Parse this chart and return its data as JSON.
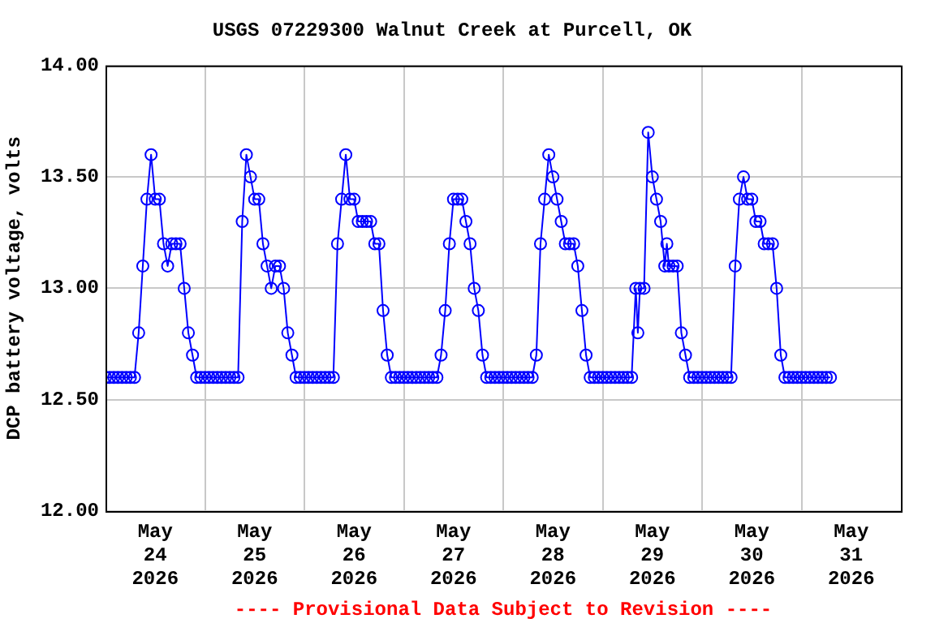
{
  "chart_data": {
    "type": "line",
    "title": "USGS 07229300 Walnut Creek at Purcell, OK",
    "ylabel": "DCP battery voltage, volts",
    "annotations": [
      "---- Provisional Data Subject to Revision ----"
    ],
    "x": [
      "2026-05-24T00:00",
      "2026-05-24T01:00",
      "2026-05-24T02:00",
      "2026-05-24T03:00",
      "2026-05-24T04:00",
      "2026-05-24T05:00",
      "2026-05-24T06:00",
      "2026-05-24T07:00",
      "2026-05-24T08:00",
      "2026-05-24T09:00",
      "2026-05-24T10:00",
      "2026-05-24T11:00",
      "2026-05-24T12:00",
      "2026-05-24T13:00",
      "2026-05-24T14:00",
      "2026-05-24T15:00",
      "2026-05-24T16:00",
      "2026-05-24T17:00",
      "2026-05-24T18:00",
      "2026-05-24T19:00",
      "2026-05-24T20:00",
      "2026-05-24T21:00",
      "2026-05-24T22:00",
      "2026-05-24T23:00",
      "2026-05-25T00:00",
      "2026-05-25T01:00",
      "2026-05-25T02:00",
      "2026-05-25T03:00",
      "2026-05-25T04:00",
      "2026-05-25T05:00",
      "2026-05-25T06:00",
      "2026-05-25T07:00",
      "2026-05-25T08:00",
      "2026-05-25T09:00",
      "2026-05-25T10:00",
      "2026-05-25T11:00",
      "2026-05-25T12:00",
      "2026-05-25T13:00",
      "2026-05-25T14:00",
      "2026-05-25T15:00",
      "2026-05-25T16:00",
      "2026-05-25T17:00",
      "2026-05-25T18:00",
      "2026-05-25T19:00",
      "2026-05-25T20:00",
      "2026-05-25T21:00",
      "2026-05-25T22:00",
      "2026-05-25T23:00",
      "2026-05-26T00:00",
      "2026-05-26T01:00",
      "2026-05-26T02:00",
      "2026-05-26T03:00",
      "2026-05-26T04:00",
      "2026-05-26T05:00",
      "2026-05-26T06:00",
      "2026-05-26T07:00",
      "2026-05-26T08:00",
      "2026-05-26T09:00",
      "2026-05-26T10:00",
      "2026-05-26T11:00",
      "2026-05-26T12:00",
      "2026-05-26T13:00",
      "2026-05-26T14:00",
      "2026-05-26T15:00",
      "2026-05-26T16:00",
      "2026-05-26T17:00",
      "2026-05-26T18:00",
      "2026-05-26T19:00",
      "2026-05-26T20:00",
      "2026-05-26T21:00",
      "2026-05-26T22:00",
      "2026-05-26T23:00",
      "2026-05-27T00:00",
      "2026-05-27T01:00",
      "2026-05-27T02:00",
      "2026-05-27T03:00",
      "2026-05-27T04:00",
      "2026-05-27T05:00",
      "2026-05-27T06:00",
      "2026-05-27T07:00",
      "2026-05-27T08:00",
      "2026-05-27T09:00",
      "2026-05-27T10:00",
      "2026-05-27T11:00",
      "2026-05-27T12:00",
      "2026-05-27T13:00",
      "2026-05-27T14:00",
      "2026-05-27T15:00",
      "2026-05-27T16:00",
      "2026-05-27T17:00",
      "2026-05-27T18:00",
      "2026-05-27T19:00",
      "2026-05-27T20:00",
      "2026-05-27T21:00",
      "2026-05-27T22:00",
      "2026-05-27T23:00",
      "2026-05-28T00:00",
      "2026-05-28T01:00",
      "2026-05-28T02:00",
      "2026-05-28T03:00",
      "2026-05-28T04:00",
      "2026-05-28T05:00",
      "2026-05-28T06:00",
      "2026-05-28T07:00",
      "2026-05-28T08:00",
      "2026-05-28T09:00",
      "2026-05-28T10:00",
      "2026-05-28T11:00",
      "2026-05-28T12:00",
      "2026-05-28T13:00",
      "2026-05-28T14:00",
      "2026-05-28T15:00",
      "2026-05-28T16:00",
      "2026-05-28T17:00",
      "2026-05-28T18:00",
      "2026-05-28T19:00",
      "2026-05-28T20:00",
      "2026-05-28T21:00",
      "2026-05-28T22:00",
      "2026-05-28T23:00",
      "2026-05-29T00:00",
      "2026-05-29T01:00",
      "2026-05-29T02:00",
      "2026-05-29T03:00",
      "2026-05-29T04:00",
      "2026-05-29T05:00",
      "2026-05-29T06:00",
      "2026-05-29T07:00",
      "2026-05-29T08:00",
      "2026-05-29T08:30",
      "2026-05-29T09:00",
      "2026-05-29T10:00",
      "2026-05-29T11:00",
      "2026-05-29T12:00",
      "2026-05-29T13:00",
      "2026-05-29T14:00",
      "2026-05-29T15:00",
      "2026-05-29T15:30",
      "2026-05-29T16:00",
      "2026-05-29T17:00",
      "2026-05-29T18:00",
      "2026-05-29T19:00",
      "2026-05-29T20:00",
      "2026-05-29T21:00",
      "2026-05-29T22:00",
      "2026-05-29T23:00",
      "2026-05-30T00:00",
      "2026-05-30T01:00",
      "2026-05-30T02:00",
      "2026-05-30T03:00",
      "2026-05-30T04:00",
      "2026-05-30T05:00",
      "2026-05-30T06:00",
      "2026-05-30T07:00",
      "2026-05-30T08:00",
      "2026-05-30T09:00",
      "2026-05-30T10:00",
      "2026-05-30T11:00",
      "2026-05-30T12:00",
      "2026-05-30T13:00",
      "2026-05-30T14:00",
      "2026-05-30T15:00",
      "2026-05-30T16:00",
      "2026-05-30T17:00",
      "2026-05-30T18:00",
      "2026-05-30T19:00",
      "2026-05-30T20:00",
      "2026-05-30T21:00",
      "2026-05-30T22:00",
      "2026-05-30T23:00",
      "2026-05-31T00:00",
      "2026-05-31T01:00",
      "2026-05-31T02:00",
      "2026-05-31T03:00",
      "2026-05-31T04:00",
      "2026-05-31T05:00",
      "2026-05-31T06:00",
      "2026-05-31T07:00"
    ],
    "series": [
      {
        "color": "#0000ff",
        "values": [
          12.6,
          12.6,
          12.6,
          12.6,
          12.6,
          12.6,
          12.6,
          12.6,
          12.8,
          13.1,
          13.4,
          13.6,
          13.4,
          13.4,
          13.2,
          13.1,
          13.2,
          13.2,
          13.2,
          13.0,
          12.8,
          12.7,
          12.6,
          12.6,
          12.6,
          12.6,
          12.6,
          12.6,
          12.6,
          12.6,
          12.6,
          12.6,
          12.6,
          13.3,
          13.6,
          13.5,
          13.4,
          13.4,
          13.2,
          13.1,
          13.0,
          13.1,
          13.1,
          13.0,
          12.8,
          12.7,
          12.6,
          12.6,
          12.6,
          12.6,
          12.6,
          12.6,
          12.6,
          12.6,
          12.6,
          12.6,
          13.2,
          13.4,
          13.6,
          13.4,
          13.4,
          13.3,
          13.3,
          13.3,
          13.3,
          13.2,
          13.2,
          12.9,
          12.7,
          12.6,
          12.6,
          12.6,
          12.6,
          12.6,
          12.6,
          12.6,
          12.6,
          12.6,
          12.6,
          12.6,
          12.6,
          12.7,
          12.9,
          13.2,
          13.4,
          13.4,
          13.4,
          13.3,
          13.2,
          13.0,
          12.9,
          12.7,
          12.6,
          12.6,
          12.6,
          12.6,
          12.6,
          12.6,
          12.6,
          12.6,
          12.6,
          12.6,
          12.6,
          12.6,
          12.7,
          13.2,
          13.4,
          13.6,
          13.5,
          13.4,
          13.3,
          13.2,
          13.2,
          13.2,
          13.1,
          12.9,
          12.7,
          12.6,
          12.6,
          12.6,
          12.6,
          12.6,
          12.6,
          12.6,
          12.6,
          12.6,
          12.6,
          12.6,
          13.0,
          12.8,
          13.0,
          13.0,
          13.7,
          13.5,
          13.4,
          13.3,
          13.1,
          13.2,
          13.1,
          13.1,
          13.1,
          12.8,
          12.7,
          12.6,
          12.6,
          12.6,
          12.6,
          12.6,
          12.6,
          12.6,
          12.6,
          12.6,
          12.6,
          12.6,
          13.1,
          13.4,
          13.5,
          13.4,
          13.4,
          13.3,
          13.3,
          13.2,
          13.2,
          13.2,
          13.0,
          12.7,
          12.6,
          12.6,
          12.6,
          12.6,
          12.6,
          12.6,
          12.6,
          12.6,
          12.6,
          12.6,
          12.6,
          12.6
        ]
      }
    ],
    "xlim": [
      "2026-05-24T00:00",
      "2026-06-01T00:00"
    ],
    "xticks": [
      {
        "value": "2026-05-24T12:00",
        "label": "May 24 2026"
      },
      {
        "value": "2026-05-25T00:00",
        "label": null
      },
      {
        "value": "2026-05-25T12:00",
        "label": "May 25 2026"
      },
      {
        "value": "2026-05-26T00:00",
        "label": null
      },
      {
        "value": "2026-05-26T12:00",
        "label": "May 26 2026"
      },
      {
        "value": "2026-05-27T00:00",
        "label": null
      },
      {
        "value": "2026-05-27T12:00",
        "label": "May 27 2026"
      },
      {
        "value": "2026-05-28T00:00",
        "label": null
      },
      {
        "value": "2026-05-28T12:00",
        "label": "May 28 2026"
      },
      {
        "value": "2026-05-29T00:00",
        "label": null
      },
      {
        "value": "2026-05-29T12:00",
        "label": "May 29 2026"
      },
      {
        "value": "2026-05-30T00:00",
        "label": null
      },
      {
        "value": "2026-05-30T12:00",
        "label": "May 30 2026"
      },
      {
        "value": "2026-05-31T00:00",
        "label": null
      },
      {
        "value": "2026-05-31T12:00",
        "label": "May 31 2026"
      }
    ],
    "ylim": [
      12,
      14
    ],
    "yticks": [
      {
        "value": 12,
        "label": "12.00"
      },
      {
        "value": 12.5,
        "label": "12.50"
      },
      {
        "value": 13,
        "label": "13.00"
      },
      {
        "value": 13.5,
        "label": "13.50"
      },
      {
        "value": 14,
        "label": "14.00"
      }
    ],
    "grid": true,
    "legend": false,
    "marker": "circle",
    "line_style": "solid"
  }
}
